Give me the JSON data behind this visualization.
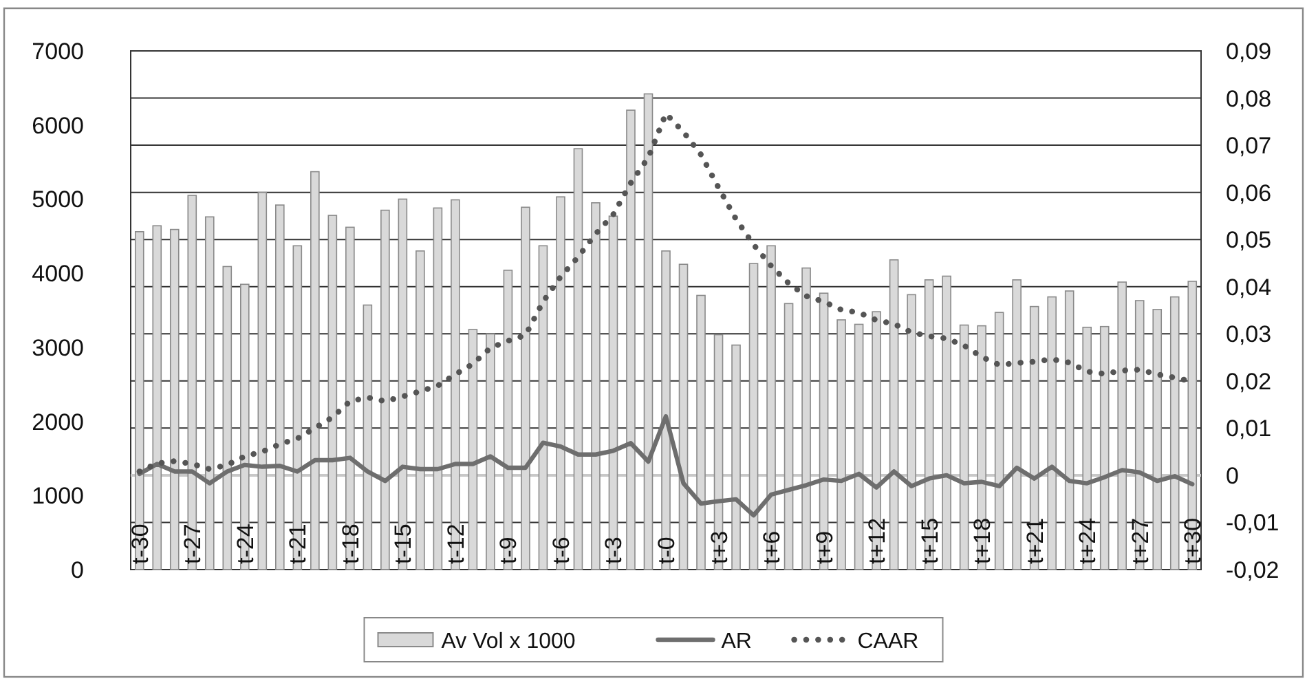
{
  "chart_data": {
    "type": "bar",
    "categories": [
      "t-30",
      null,
      null,
      "t-27",
      null,
      null,
      "t-24",
      null,
      null,
      "t-21",
      null,
      null,
      "t-18",
      null,
      null,
      "t-15",
      null,
      null,
      "t-12",
      null,
      null,
      "t-9",
      null,
      null,
      "t-6",
      null,
      null,
      "t-3",
      null,
      null,
      "t-0",
      null,
      null,
      "t+3",
      null,
      null,
      "t+6",
      null,
      null,
      "t+9",
      null,
      null,
      "t+12",
      null,
      null,
      "t+15",
      null,
      null,
      "t+18",
      null,
      null,
      "t+21",
      null,
      null,
      "t+24",
      null,
      null,
      "t+27",
      null,
      null,
      "t+30"
    ],
    "series": [
      {
        "name": "Av Vol x 1000",
        "color": "#d9d9d9",
        "values": [
          4560,
          4640,
          4590,
          5050,
          4760,
          4090,
          3850,
          5090,
          4920,
          4370,
          5370,
          4780,
          4620,
          3570,
          4850,
          5000,
          4300,
          4880,
          4990,
          3240,
          3180,
          4040,
          4890,
          4370,
          5030,
          5680,
          4950,
          4770,
          6200,
          6420,
          4300,
          4120,
          3700,
          3170,
          3030,
          4130,
          4370,
          3590,
          4070,
          3730,
          3370,
          3310,
          3480,
          4180,
          3710,
          3910,
          3960,
          3300,
          3290,
          3470,
          3910,
          3550,
          3680,
          3760,
          3270,
          3280,
          3880,
          3630,
          3510,
          3680,
          3890
        ]
      },
      {
        "name": "AR",
        "type": "line",
        "axis": "y2",
        "color": "#6e6e6e",
        "line_style": "solid",
        "values": [
          0.0003,
          0.0024,
          0.0008,
          0.0008,
          -0.0017,
          0.0008,
          0.0022,
          0.0018,
          0.002,
          0.0008,
          0.0032,
          0.0032,
          0.0037,
          0.0008,
          -0.0012,
          0.0018,
          0.0013,
          0.0013,
          0.0024,
          0.0024,
          0.004,
          0.0016,
          0.0016,
          0.0069,
          0.0061,
          0.0044,
          0.0044,
          0.0052,
          0.0068,
          0.0029,
          0.0125,
          -0.0017,
          -0.006,
          -0.0055,
          -0.0051,
          -0.0085,
          -0.0041,
          -0.0031,
          -0.0021,
          -0.0009,
          -0.0012,
          0.0003,
          -0.0026,
          0.0008,
          -0.0023,
          -0.0007,
          0,
          -0.0017,
          -0.0014,
          -0.0023,
          0.0016,
          -0.0007,
          0.0018,
          -0.0012,
          -0.0017,
          -0.0004,
          0.0011,
          0.0006,
          -0.0012,
          -0.0002,
          -0.0019
        ]
      },
      {
        "name": "CAAR",
        "type": "line",
        "axis": "y2",
        "color": "#555555",
        "line_style": "dotted",
        "values": [
          0.0008,
          0.0025,
          0.003,
          0.0024,
          0.0013,
          0.0022,
          0.004,
          0.005,
          0.0066,
          0.0078,
          0.01,
          0.0123,
          0.0157,
          0.0165,
          0.0157,
          0.0167,
          0.0178,
          0.019,
          0.0214,
          0.0236,
          0.027,
          0.0285,
          0.0297,
          0.0368,
          0.0421,
          0.0463,
          0.0512,
          0.0553,
          0.062,
          0.0674,
          0.0767,
          0.0728,
          0.068,
          0.061,
          0.0543,
          0.0489,
          0.0444,
          0.0407,
          0.038,
          0.0368,
          0.0351,
          0.0345,
          0.0329,
          0.0321,
          0.0303,
          0.0295,
          0.029,
          0.0275,
          0.0251,
          0.0234,
          0.0238,
          0.0241,
          0.0246,
          0.0239,
          0.022,
          0.0215,
          0.0222,
          0.0224,
          0.0214,
          0.0207,
          0.0199
        ]
      }
    ],
    "ylim": [
      0,
      7000
    ],
    "yticks": [
      0,
      1000,
      2000,
      3000,
      4000,
      5000,
      6000,
      7000
    ],
    "y2lim": [
      -0.02,
      0.09
    ],
    "y2ticks": [
      {
        "value": -0.02,
        "label": "-0,02"
      },
      {
        "value": -0.01,
        "label": "-0,01"
      },
      0,
      {
        "value": 0.01,
        "label": "0,01"
      },
      {
        "value": 0.02,
        "label": "0,02"
      },
      {
        "value": 0.03,
        "label": "0,03"
      },
      {
        "value": 0.04,
        "label": "0,04"
      },
      {
        "value": 0.05,
        "label": "0,05"
      },
      {
        "value": 0.06,
        "label": "0,06"
      },
      {
        "value": 0.07,
        "label": "0,07"
      },
      {
        "value": 0.08,
        "label": "0,08"
      },
      {
        "value": 0.09,
        "label": "0,09"
      }
    ],
    "ref_lines": [
      {
        "axis": "y2",
        "value": 0,
        "color": "#c8c8c8"
      }
    ],
    "grid": "y",
    "legend": "bottom"
  }
}
